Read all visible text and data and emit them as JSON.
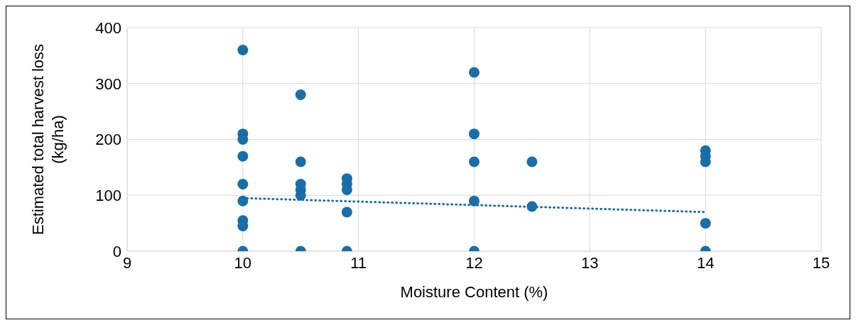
{
  "chart_data": {
    "type": "scatter",
    "xlabel": "Moisture Content (%)",
    "ylabel": "Estimated total harvest loss (kg/ha)",
    "xlim": [
      9,
      15
    ],
    "xticks": [
      9,
      10,
      11,
      12,
      13,
      14,
      15
    ],
    "ylim": [
      0,
      400
    ],
    "yticks": [
      0,
      100,
      200,
      300,
      400
    ],
    "grid": true,
    "marker": "circle",
    "series": [
      {
        "color": "#1a6ea8",
        "x": [
          10,
          10,
          10,
          10,
          10,
          10,
          10,
          10,
          10,
          10.5,
          10.5,
          10.5,
          10.5,
          10.5,
          10.5,
          10.9,
          10.9,
          10.9,
          10.9,
          10.9,
          12,
          12,
          12,
          12,
          12,
          12.5,
          12.5,
          14,
          14,
          14,
          14,
          14
        ],
        "values": [
          360,
          210,
          200,
          170,
          120,
          90,
          55,
          45,
          0,
          280,
          160,
          120,
          110,
          100,
          0,
          130,
          120,
          110,
          70,
          0,
          320,
          210,
          160,
          90,
          0,
          160,
          80,
          180,
          170,
          160,
          50,
          0
        ]
      },
      {
        "type": "line",
        "color": "#1a6ea8",
        "line_style": "dotted",
        "marker": "none",
        "x": [
          10,
          14
        ],
        "values": [
          95,
          70
        ]
      }
    ]
  }
}
